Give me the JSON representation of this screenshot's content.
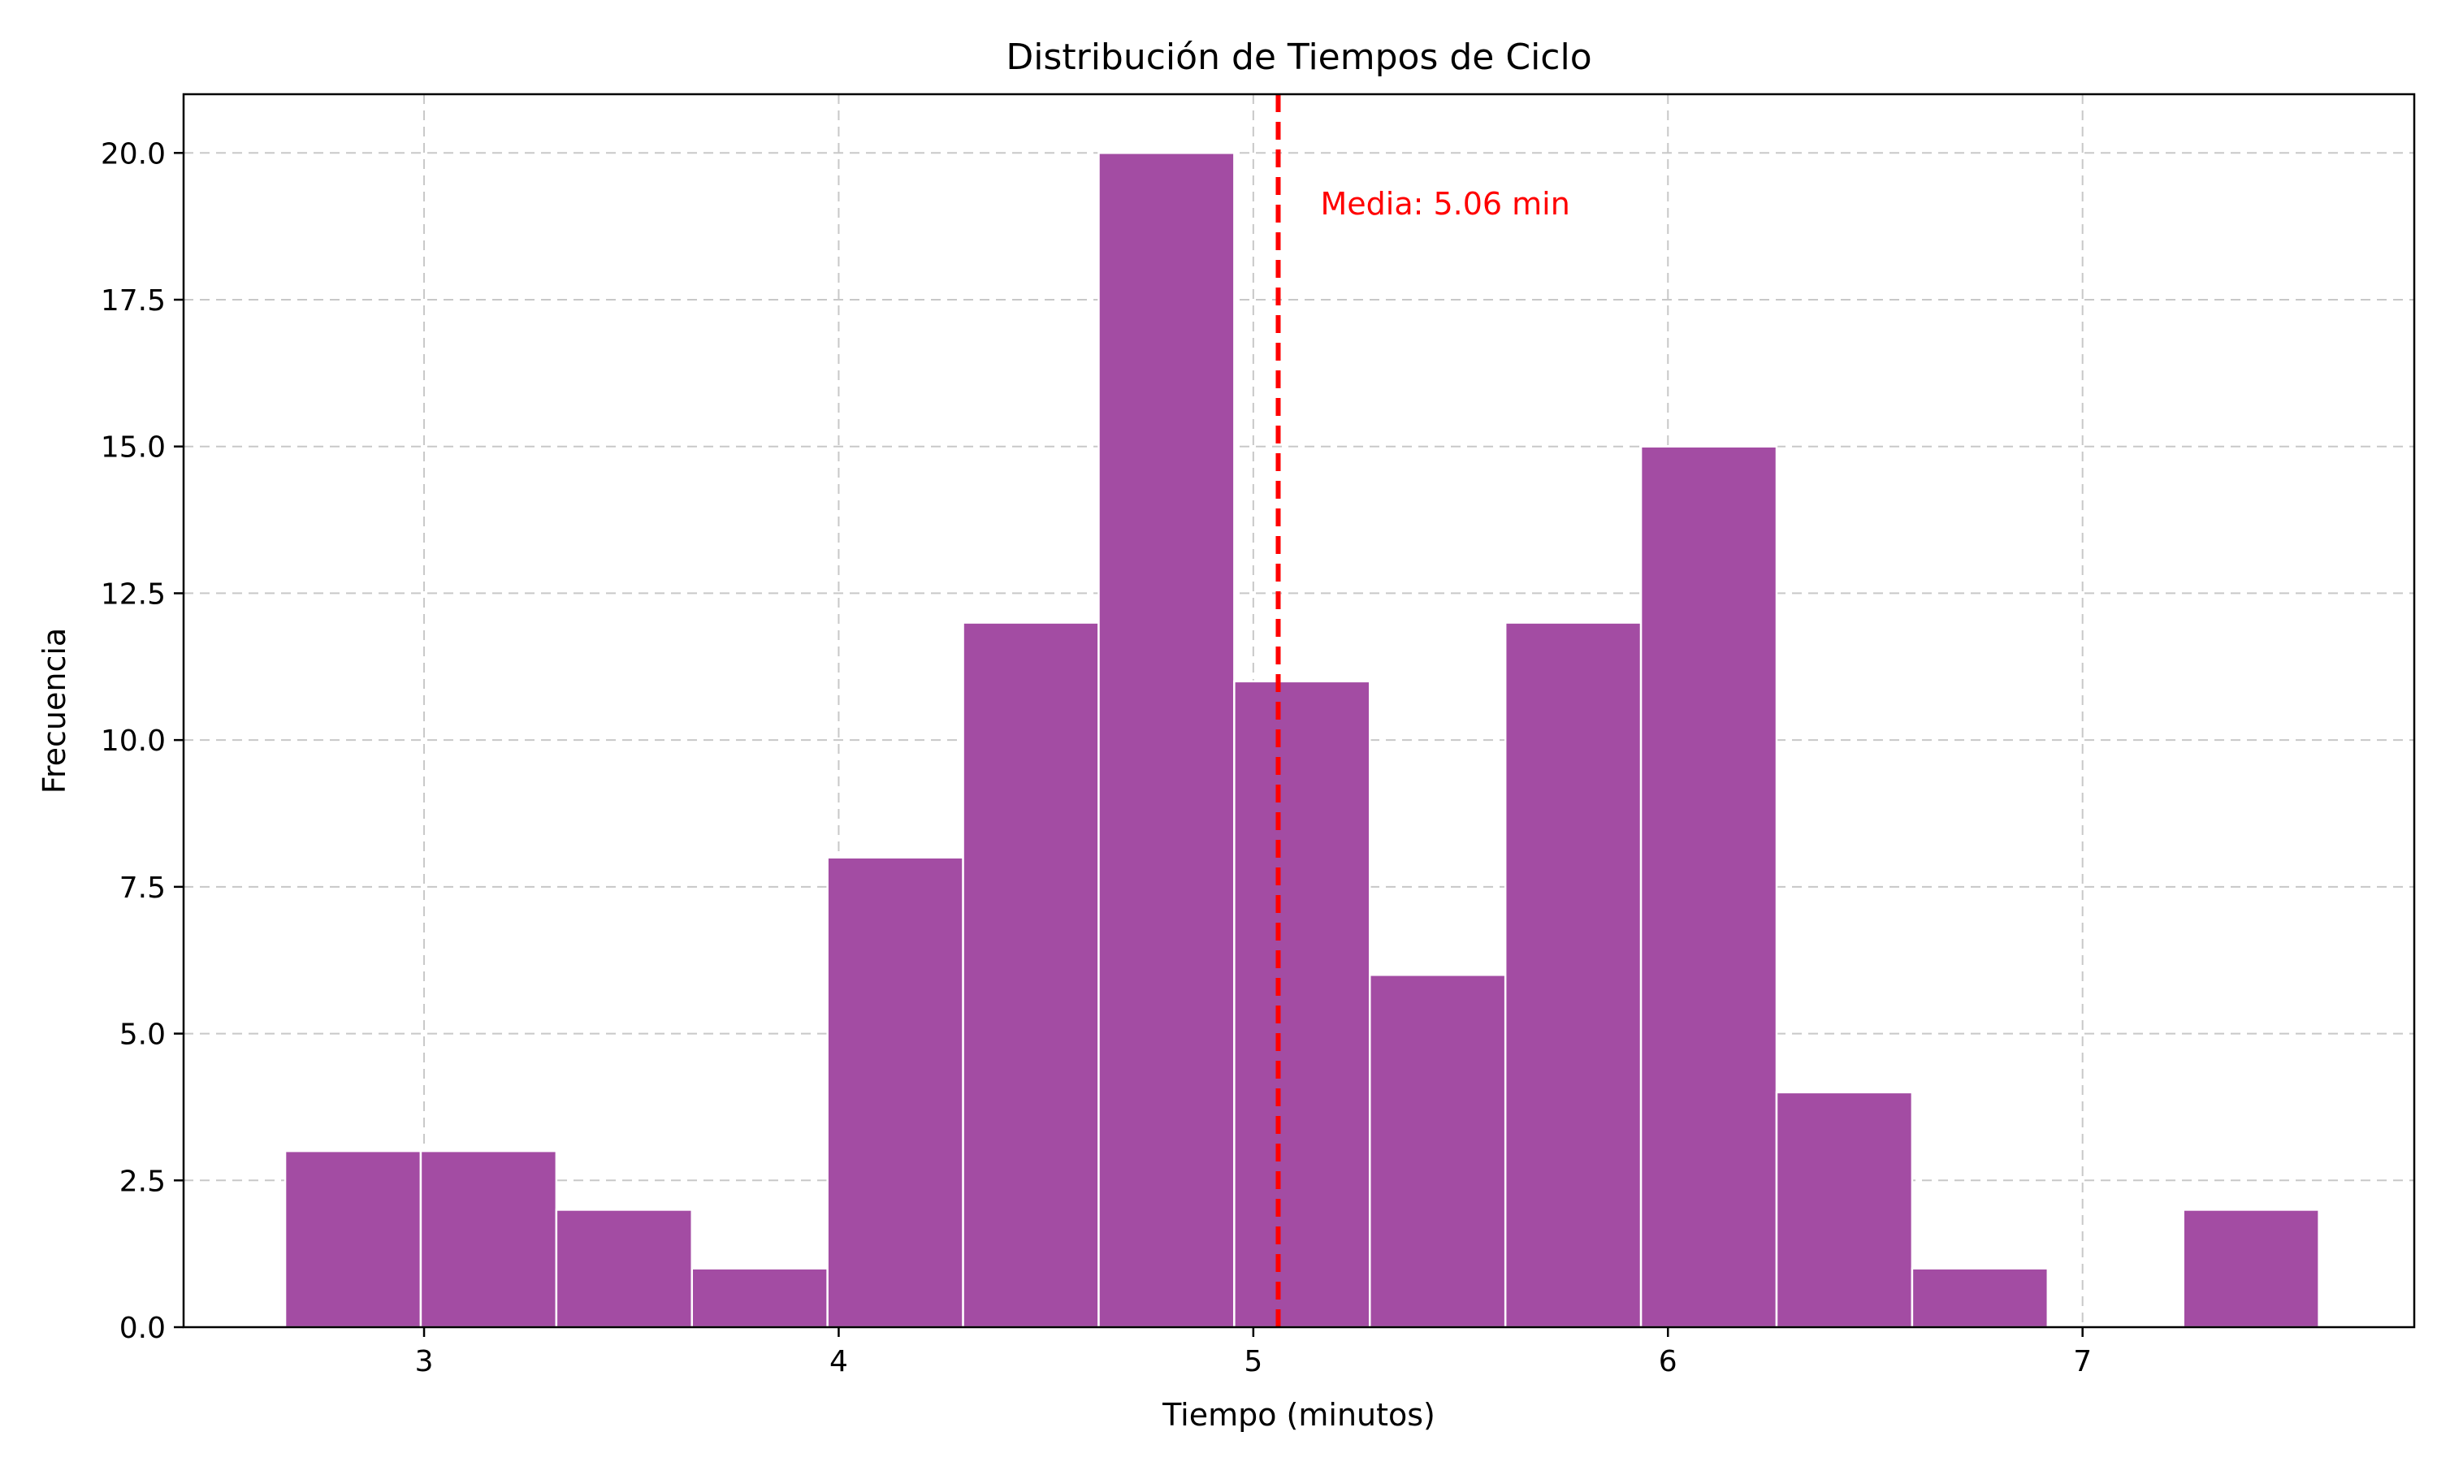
{
  "chart_data": {
    "type": "bar",
    "title": "Distribución de Tiempos de Ciclo",
    "xlabel": "Tiempo (minutos)",
    "ylabel": "Frecuencia",
    "xlim": [
      2.42,
      7.8
    ],
    "ylim": [
      0,
      21
    ],
    "xticks": [
      3,
      4,
      5,
      6,
      7
    ],
    "xtick_labels": [
      "3",
      "4",
      "5",
      "6",
      "7"
    ],
    "yticks": [
      0,
      2.5,
      5,
      7.5,
      10,
      12.5,
      15,
      17.5,
      20
    ],
    "ytick_labels": [
      "0.0",
      "2.5",
      "5.0",
      "7.5",
      "10.0",
      "12.5",
      "15.0",
      "17.5",
      "20.0"
    ],
    "grid": true,
    "bins": [
      {
        "x0": 2.665,
        "x1": 2.992,
        "count": 3
      },
      {
        "x0": 2.992,
        "x1": 3.319,
        "count": 3
      },
      {
        "x0": 3.319,
        "x1": 3.646,
        "count": 2
      },
      {
        "x0": 3.646,
        "x1": 3.973,
        "count": 1
      },
      {
        "x0": 3.973,
        "x1": 4.3,
        "count": 8
      },
      {
        "x0": 4.3,
        "x1": 4.627,
        "count": 12
      },
      {
        "x0": 4.627,
        "x1": 4.954,
        "count": 20
      },
      {
        "x0": 4.954,
        "x1": 5.281,
        "count": 11
      },
      {
        "x0": 5.281,
        "x1": 5.608,
        "count": 6
      },
      {
        "x0": 5.608,
        "x1": 5.935,
        "count": 12
      },
      {
        "x0": 5.935,
        "x1": 6.262,
        "count": 15
      },
      {
        "x0": 6.262,
        "x1": 6.589,
        "count": 4
      },
      {
        "x0": 6.589,
        "x1": 6.916,
        "count": 1
      },
      {
        "x0": 6.916,
        "x1": 7.243,
        "count": 0
      },
      {
        "x0": 7.243,
        "x1": 7.57,
        "count": 2
      }
    ],
    "mean_line": {
      "x": 5.06,
      "label": "Media: 5.06 min",
      "color": "#ff0000"
    },
    "bar_color": "#a34ca3",
    "bar_edge_color": "#ffffff"
  }
}
